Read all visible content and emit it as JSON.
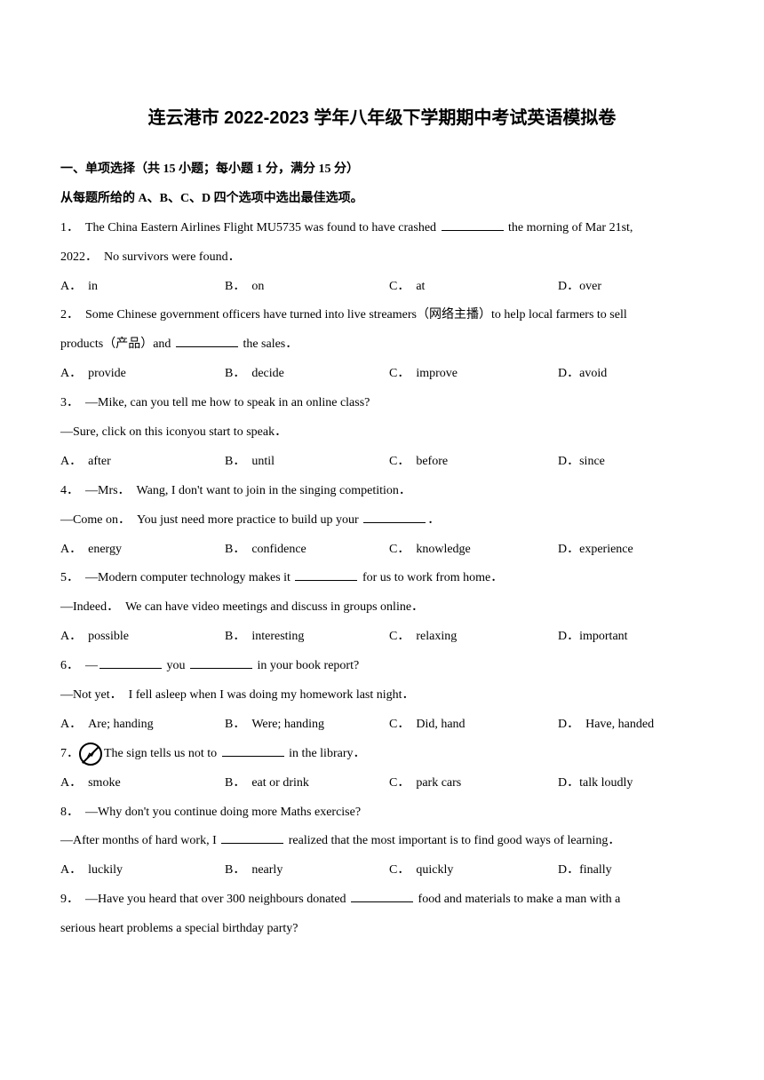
{
  "title": "连云港市 2022-2023 学年八年级下学期期中考试英语模拟卷",
  "section_header": "一、单项选择（共 15 小题；每小题 1 分，满分 15 分）",
  "instruction": "从每题所给的 A、B、C、D 四个选项中选出最佳选项。",
  "questions": [
    {
      "number": "1．",
      "text_before": "　The China Eastern Airlines Flight MU5735 was found to have crashed ",
      "text_after": " the morning of Mar 21st,",
      "line2": "2022．　No survivors were found．",
      "options": {
        "a": "A．　in",
        "b": "B．　on",
        "c": "C．　at",
        "d": "D．over"
      }
    },
    {
      "number": "2．",
      "text_before": "　Some Chinese government officers have turned into live streamers（网络主播）to help local farmers to sell",
      "line2_before": "products（产品）and ",
      "line2_after": " the sales．",
      "options": {
        "a": "A．　provide",
        "b": "B．　decide",
        "c": "C．　improve",
        "d": "D．avoid"
      }
    },
    {
      "number": "3．",
      "text": "　—Mike, can you tell me how to speak in an online class?",
      "line2": "—Sure, click on this iconyou start to speak．",
      "options": {
        "a": "A．　after",
        "b": "B．　until",
        "c": "C．　before",
        "d": "D．since"
      }
    },
    {
      "number": "4．",
      "text": "　—Mrs．　Wang, I don't want to join in the singing competition．",
      "line2_before": "—Come on．　You just need more practice to build up your ",
      "line2_after": "．",
      "options": {
        "a": "A．　energy",
        "b": "B．　confidence",
        "c": "C．　knowledge",
        "d": "D．experience"
      }
    },
    {
      "number": "5．",
      "text_before": "　—Modern computer technology makes it ",
      "text_after": " for us to work from home．",
      "line2": "—Indeed．　We can have video meetings and discuss in groups online．",
      "options": {
        "a": "A．　possible",
        "b": "B．　interesting",
        "c": "C．　relaxing",
        "d": "D．important"
      }
    },
    {
      "number": "6．",
      "text_before": "　—",
      "text_mid": " you ",
      "text_after": " in your book report?",
      "line2": "—Not yet．　I fell asleep when I was doing my homework last night．",
      "options": {
        "a": "A．　Are; handing",
        "b": "B．　Were; handing",
        "c": "C．　Did, hand",
        "d": "D．　Have, handed"
      }
    },
    {
      "number": "7．",
      "text_before": "The sign tells us not to ",
      "text_after": " in the library．",
      "options": {
        "a": "A．　smoke",
        "b": "B．　eat or drink",
        "c": "C．　park cars",
        "d": "D．talk loudly"
      }
    },
    {
      "number": "8．",
      "text": "　—Why don't you continue doing more Maths exercise?",
      "line2_before": "—After months of hard work, I ",
      "line2_after": " realized that the most important is to find good ways of learning．",
      "options": {
        "a": "A．　luckily",
        "b": "B．　nearly",
        "c": "C．　quickly",
        "d": "D．finally"
      }
    },
    {
      "number": "9．",
      "text_before": "　—Have you heard that over 300 neighbours donated ",
      "text_after": " food and materials to make a man with a",
      "line2": "serious heart problems a special birthday party?"
    }
  ]
}
